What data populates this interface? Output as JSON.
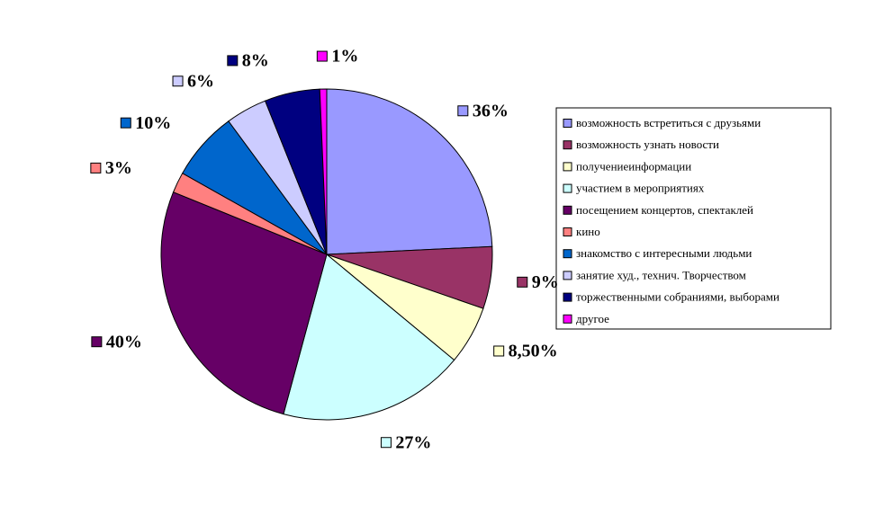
{
  "chart_data": {
    "type": "pie",
    "categories": [
      "возможность встретиться с друзьями",
      "возможность узнать новости",
      "получениеинформации",
      "участием в мероприятиях",
      "посещением концертов, спектаклей",
      "кино",
      "знакомство с интересными людьми",
      "занятие худ., технич. Творчеством",
      "торжественными собраниями, выборами",
      "другое"
    ],
    "values": [
      36,
      9,
      8.5,
      27,
      40,
      3,
      10,
      6,
      8,
      1
    ],
    "value_labels": [
      "36%",
      "9%",
      "8,50%",
      "27%",
      "40%",
      "3%",
      "10%",
      "6%",
      "8%",
      "1%"
    ],
    "colors": [
      "#9999ff",
      "#993366",
      "#ffffcc",
      "#ccffff",
      "#660066",
      "#ff8080",
      "#0066cc",
      "#ccccff",
      "#000080",
      "#ff00ff"
    ],
    "legend": "right"
  }
}
